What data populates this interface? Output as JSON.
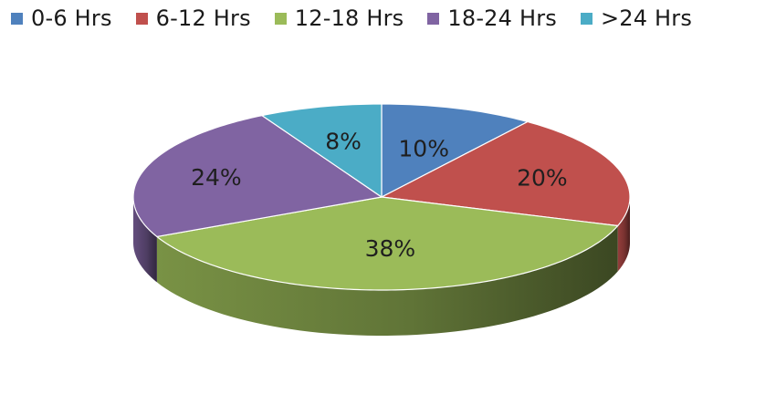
{
  "chart_data": {
    "type": "pie",
    "style": "3d",
    "legend_position": "top",
    "categories": [
      "0-6 Hrs",
      "6-12 Hrs",
      "12-18 Hrs",
      "18-24 Hrs",
      ">24 Hrs"
    ],
    "values": [
      10,
      20,
      38,
      24,
      8
    ],
    "labels": [
      "10%",
      "20%",
      "38%",
      "24%",
      "8%"
    ],
    "colors": [
      "#4F81BD",
      "#C0504D",
      "#9BBB59",
      "#8064A2",
      "#4BACC6"
    ]
  }
}
